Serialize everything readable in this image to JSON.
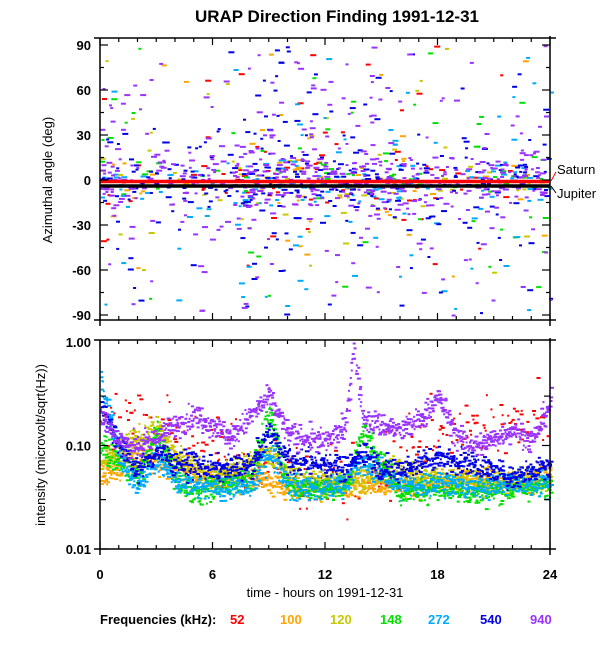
{
  "chart_data": [
    {
      "type": "scatter",
      "title": "URAP Direction Finding  1991-12-31",
      "ylabel": "Azimuthal angle (deg)",
      "xlim": [
        0,
        24
      ],
      "ylim": [
        -90,
        90
      ],
      "yticks": [
        "90",
        "60",
        "30",
        "0",
        "-30",
        "-60",
        "-90"
      ],
      "ytick_values": [
        90,
        60,
        30,
        0,
        -30,
        -60,
        -90
      ],
      "reference_lines": [
        {
          "name": "Saturn",
          "value": -1,
          "color": "#ff0000"
        },
        {
          "name": "Jupiter",
          "value": -4,
          "color": "#000000"
        }
      ],
      "density_note": "scattered points clustered near 0 deg, spread to +/-90 deg",
      "series": [
        {
          "name": "52",
          "color": "#ff0000",
          "spread": 12,
          "count": 90
        },
        {
          "name": "100",
          "color": "#ffa500",
          "spread": 30,
          "count": 70
        },
        {
          "name": "120",
          "color": "#c8c800",
          "spread": 35,
          "count": 70
        },
        {
          "name": "148",
          "color": "#00e000",
          "spread": 40,
          "count": 90
        },
        {
          "name": "272",
          "color": "#00aaff",
          "spread": 45,
          "count": 160
        },
        {
          "name": "540",
          "color": "#0000e6",
          "spread": 45,
          "count": 330
        },
        {
          "name": "940",
          "color": "#9933ff",
          "spread": 45,
          "count": 520
        }
      ]
    },
    {
      "type": "scatter",
      "ylabel": "intensity (microvolt/sqrt(Hz))",
      "yscale": "log",
      "xlabel": "time - hours on 1991-12-31",
      "xlim": [
        0,
        24
      ],
      "ylim": [
        0.01,
        1.0
      ],
      "xticks": [
        "0",
        "6",
        "12",
        "18",
        "24"
      ],
      "xtick_values": [
        0,
        6,
        12,
        18,
        24
      ],
      "yticks": [
        "1.00",
        "0.10",
        "0.01"
      ],
      "ytick_values": [
        1.0,
        0.1,
        0.01
      ],
      "series": [
        {
          "name": "52",
          "color": "#ff0000",
          "x": [
            0,
            1,
            2,
            3,
            4,
            5,
            6,
            8,
            10,
            11,
            12,
            13,
            14,
            15,
            16,
            18,
            20,
            22,
            23,
            24
          ],
          "y": [
            0.2,
            0.18,
            0.2,
            0.15,
            0.14,
            0.11,
            0.09,
            0.07,
            0.06,
            0.05,
            0.045,
            0.045,
            0.05,
            0.06,
            0.09,
            0.12,
            0.14,
            0.16,
            0.15,
            0.14
          ]
        },
        {
          "name": "100",
          "color": "#ffa500",
          "x": [
            0,
            1,
            2,
            3,
            4,
            6,
            8,
            10,
            12,
            14,
            16,
            18,
            20,
            22,
            24
          ],
          "y": [
            0.05,
            0.06,
            0.09,
            0.07,
            0.06,
            0.05,
            0.05,
            0.04,
            0.04,
            0.045,
            0.04,
            0.045,
            0.05,
            0.045,
            0.05
          ]
        },
        {
          "name": "120",
          "color": "#c8c800",
          "x": [
            0,
            1,
            2,
            3,
            4,
            6,
            8,
            9,
            10,
            12,
            14,
            15,
            16,
            18,
            20,
            22,
            24
          ],
          "y": [
            0.07,
            0.09,
            0.12,
            0.15,
            0.08,
            0.05,
            0.07,
            0.09,
            0.05,
            0.045,
            0.05,
            0.055,
            0.06,
            0.05,
            0.045,
            0.045,
            0.05
          ]
        },
        {
          "name": "148",
          "color": "#00e000",
          "x": [
            0,
            1,
            2,
            3,
            4,
            5,
            6,
            8,
            9,
            10,
            12,
            13,
            14,
            16,
            18,
            20,
            22,
            24
          ],
          "y": [
            0.1,
            0.07,
            0.05,
            0.14,
            0.05,
            0.035,
            0.04,
            0.05,
            0.2,
            0.04,
            0.04,
            0.04,
            0.14,
            0.035,
            0.04,
            0.035,
            0.04,
            0.04
          ]
        },
        {
          "name": "272",
          "color": "#00aaff",
          "x": [
            0,
            1,
            2,
            3,
            4,
            5,
            6,
            8,
            9,
            10,
            12,
            13,
            14,
            16,
            18,
            20,
            22,
            24
          ],
          "y": [
            0.5,
            0.08,
            0.04,
            0.08,
            0.045,
            0.04,
            0.04,
            0.04,
            0.09,
            0.04,
            0.04,
            0.045,
            0.07,
            0.04,
            0.045,
            0.04,
            0.045,
            0.045
          ]
        },
        {
          "name": "540",
          "color": "#0000e6",
          "x": [
            0,
            1,
            2,
            3,
            4,
            5,
            6,
            8,
            9,
            10,
            12,
            13,
            14,
            15,
            16,
            18,
            20,
            22,
            23,
            24
          ],
          "y": [
            0.25,
            0.1,
            0.06,
            0.09,
            0.07,
            0.065,
            0.06,
            0.065,
            0.14,
            0.07,
            0.07,
            0.06,
            0.09,
            0.06,
            0.06,
            0.08,
            0.065,
            0.05,
            0.06,
            0.07
          ]
        },
        {
          "name": "940",
          "color": "#9933ff",
          "x": [
            0,
            1,
            2,
            3,
            4,
            5,
            6,
            7,
            8,
            9,
            10,
            12,
            13,
            13.5,
            14,
            15,
            16,
            17,
            18,
            19,
            20,
            21,
            22,
            23,
            24
          ],
          "y": [
            0.2,
            0.11,
            0.1,
            0.12,
            0.16,
            0.2,
            0.16,
            0.12,
            0.2,
            0.3,
            0.13,
            0.11,
            0.15,
            0.9,
            0.18,
            0.16,
            0.14,
            0.18,
            0.3,
            0.12,
            0.1,
            0.12,
            0.15,
            0.11,
            0.28
          ]
        }
      ]
    }
  ],
  "legend": {
    "label": "Frequencies (kHz):",
    "items": [
      {
        "text": "52",
        "color": "#ff0000"
      },
      {
        "text": "100",
        "color": "#ffa500"
      },
      {
        "text": "120",
        "color": "#c8c800"
      },
      {
        "text": "148",
        "color": "#00e000"
      },
      {
        "text": "272",
        "color": "#00aaff"
      },
      {
        "text": "540",
        "color": "#0000e6"
      },
      {
        "text": "940",
        "color": "#9933ff"
      }
    ]
  }
}
